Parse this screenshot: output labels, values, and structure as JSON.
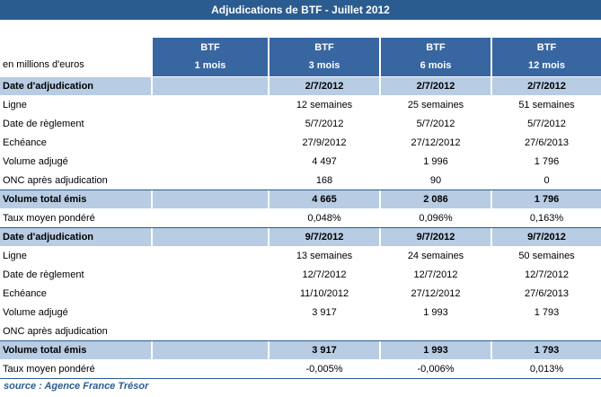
{
  "title": "Adjudications de BTF - Juillet 2012",
  "unit_note": "en millions d'euros",
  "columns": [
    {
      "line1": "BTF",
      "line2": "1 mois"
    },
    {
      "line1": "BTF",
      "line2": "3 mois"
    },
    {
      "line1": "BTF",
      "line2": "6 mois"
    },
    {
      "line1": "BTF",
      "line2": "12 mois"
    }
  ],
  "rows": [
    {
      "highlighted": true,
      "cells": [
        "Date d'adjudication",
        null,
        "2/7/2012",
        "2/7/2012",
        "2/7/2012"
      ]
    },
    {
      "highlighted": false,
      "cells": [
        "Ligne",
        null,
        "12 semaines",
        "25 semaines",
        "51 semaines"
      ]
    },
    {
      "highlighted": false,
      "cells": [
        "Date de règlement",
        null,
        "5/7/2012",
        "5/7/2012",
        "5/7/2012"
      ]
    },
    {
      "highlighted": false,
      "cells": [
        "Echéance",
        null,
        "27/9/2012",
        "27/12/2012",
        "27/6/2013"
      ]
    },
    {
      "highlighted": false,
      "cells": [
        "Volume adjugé",
        null,
        "4 497",
        "1 996",
        "1 796"
      ]
    },
    {
      "highlighted": false,
      "cells": [
        "ONC après adjudication",
        null,
        "168",
        "90",
        "0"
      ]
    },
    {
      "highlighted": true,
      "cells": [
        "Volume total émis",
        null,
        "4 665",
        "2 086",
        "1 796"
      ]
    },
    {
      "highlighted": false,
      "cells": [
        "Taux moyen pondéré",
        null,
        "0,048%",
        "0,096%",
        "0,163%"
      ]
    },
    {
      "highlighted": true,
      "cells": [
        "Date d'adjudication",
        null,
        "9/7/2012",
        "9/7/2012",
        "9/7/2012"
      ]
    },
    {
      "highlighted": false,
      "cells": [
        "Ligne",
        null,
        "13 semaines",
        "24 semaines",
        "50 semaines"
      ]
    },
    {
      "highlighted": false,
      "cells": [
        "Date de règlement",
        null,
        "12/7/2012",
        "12/7/2012",
        "12/7/2012"
      ]
    },
    {
      "highlighted": false,
      "cells": [
        "Echéance",
        null,
        "11/10/2012",
        "27/12/2012",
        "27/6/2013"
      ]
    },
    {
      "highlighted": false,
      "cells": [
        "Volume adjugé",
        null,
        "3 917",
        "1 993",
        "1 793"
      ]
    },
    {
      "highlighted": false,
      "cells": [
        "ONC après adjudication",
        null,
        null,
        null,
        null
      ]
    },
    {
      "highlighted": true,
      "cells": [
        "Volume total émis",
        null,
        "3 917",
        "1 993",
        "1 793"
      ]
    },
    {
      "highlighted": false,
      "cells": [
        "Taux moyen pondéré",
        null,
        "-0,005%",
        "-0,006%",
        "0,013%"
      ]
    }
  ],
  "source": "source : Agence France Trésor"
}
